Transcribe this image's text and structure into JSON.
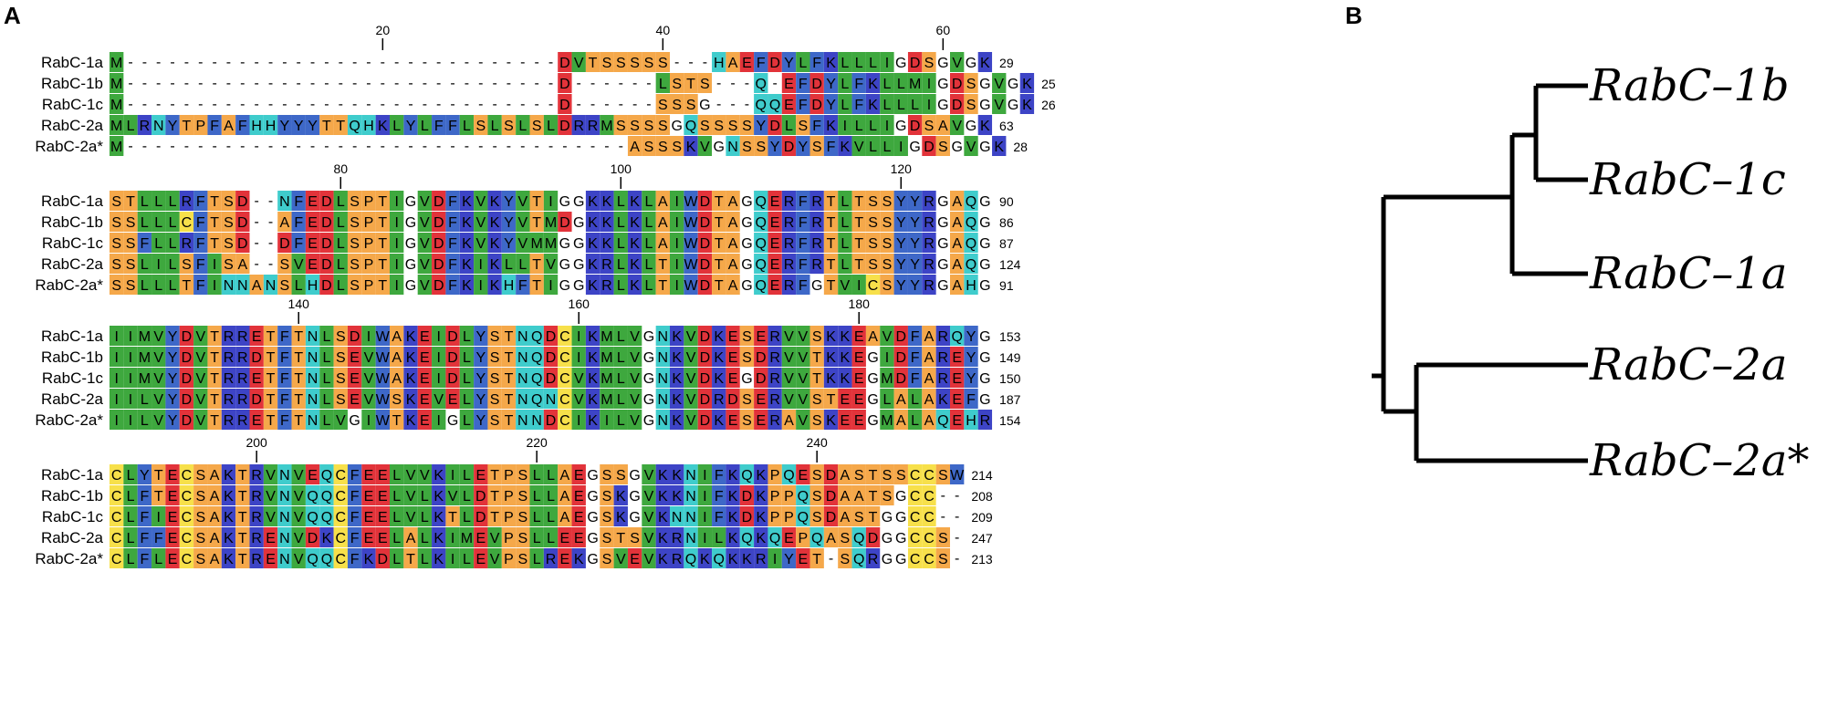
{
  "panels": {
    "a": "A",
    "b": "B"
  },
  "colors": {
    "A": "#f5a84a",
    "B": "#f5a84a",
    "C": "#f7e04a",
    "D": "#e2333a",
    "E": "#e2333a",
    "F": "#3e68c8",
    "G": "#ffffff",
    "H": "#3fcccc",
    "I": "#3ea83e",
    "J": "#3ea83e",
    "K": "#3d44c6",
    "L": "#3ea83e",
    "M": "#3ea83e",
    "N": "#3fcccc",
    "O": "#3fcccc",
    "P": "#f5a84a",
    "Q": "#3fcccc",
    "R": "#3d44c6",
    "S": "#f5a84a",
    "T": "#f5a84a",
    "U": "#f5a84a",
    "V": "#3ea83e",
    "W": "#3e68c8",
    "X": "#d9d9d9",
    "Y": "#3e68c8",
    "Z": "#d9d9d9",
    "-": "none"
  },
  "alignment": {
    "names": [
      "RabC-1a",
      "RabC-1b",
      "RabC-1c",
      "RabC-2a",
      "RabC-2a*"
    ],
    "blocks": [
      {
        "start": 1,
        "ticks": [
          "20",
          "40",
          "60"
        ],
        "rows": [
          "M-------------------------------DVTSSSSS---HAEFDYLFKLLLIGDSGVGK",
          "M-------------------------------D------LSTS---Q-EFDYLFKLLMIGDSGVGK",
          "M-------------------------------D------SSSG---QQEFDYLFKLLLIGDSGVGK",
          "MLRNYTPFAFHHYYYTTQHKLYLFFLSLSLSLDRRMSSSSGQSSSSYDLSFKILLIGDSAVGK",
          "M------------------------------------ASSSKVGNSSYDYSFKVLLIGDSGVGK"
        ],
        "ends": [
          "29",
          "25",
          "26",
          "63",
          "28"
        ]
      },
      {
        "start": 64,
        "ticks": [
          "80",
          "100",
          "120"
        ],
        "rows": [
          "STLLLRFTSD--NFEDLSPTIGVDFKVKYVTIGGKKLKLAIWDTAGQERFRTLTSSYYRGAQG",
          "SSLLLCFTSD--AFEDLSPTIGVDFKVKYVTMDGKKLKLAIWDTAGQERFRTLTSSYYRGAQG",
          "SSFLLRFTSD--DFEDLSPTIGVDFKVKYVMMGGKKLKLAIWDTAGQERFRTLTSSYYRGAQG",
          "SSLILSFISA--SVEDLSPTIGVDFKIKLLTVGGKRLKLTIWDTAGQERFRTLTSSYYRGAQG",
          "SSLLLTFINNANSLHDLSPTIGVDFKIKHFTIGGKRLKLTIWDTAGQERFGTVICSYYRGAHG"
        ],
        "ends": [
          "90",
          "86",
          "87",
          "124",
          "91"
        ]
      },
      {
        "start": 127,
        "ticks": [
          "140",
          "160",
          "180"
        ],
        "rows": [
          "IIMVYDVTRRETFTNLSDIWAKEIDLYSTNQDCIKMLVGNKVDKESERVVSKKEAVDFARQYG",
          "IIMVYDVTRRDTFTNLSEVWAKEIDLYSTNQDCIKMLVGNKVDKESDRVVTKKEGIDFAREYG",
          "IIMVYDVTRRETFTNLSEVWAKEIDLYSTNQDCVKMLVGNKVDKEGDRVVTKKEGMDFAREYG",
          "IILVYDVTRRDTFTNLSEVWSKEVELYSTNQNCVKMLVGNKVDRDSERVVSTEEGLALAKEFG",
          "IILVYDVTRRETFTNLVGIWTKEIGLYSTNNDCIKILVGNKVDKESERAVSKEEGMALAQEHR"
        ],
        "ends": [
          "153",
          "149",
          "150",
          "187",
          "154"
        ]
      },
      {
        "start": 190,
        "ticks": [
          "200",
          "220",
          "240"
        ],
        "rows": [
          "CLYTECSAKTRVNVEQCFEELVVKILETPSLLAEGSSGVKKNIFKQKPQESDASTSSCCSW",
          "CLFTECSAKTRVNVQQCFEELVLKVLDTPSLLAEGSKGVKKNIFKDKPPQSDAATSGCC--",
          "CLFIECSAKTRVNVQQCFEELVLKTLDTPSLLAEGSKGVKNNIFKDKPPQSDASTGGCC--",
          "CLFFECSAKTRENVDKCFEELALKIMEVPSLLEEGSTSVKRNILKQKQEPQASQDGGCCS-",
          "CLFLECSAKTRENVQQCFKDLTLKILEVPSLREKGSVEVKRQKQKKRIYET-SQRGGCCS-"
        ],
        "ends": [
          "214",
          "208",
          "209",
          "247",
          "213"
        ]
      }
    ]
  },
  "tree": {
    "leaves": [
      "RabC–1b",
      "RabC–1c",
      "RabC–1a",
      "RabC–2a",
      "RabC–2a*"
    ]
  }
}
